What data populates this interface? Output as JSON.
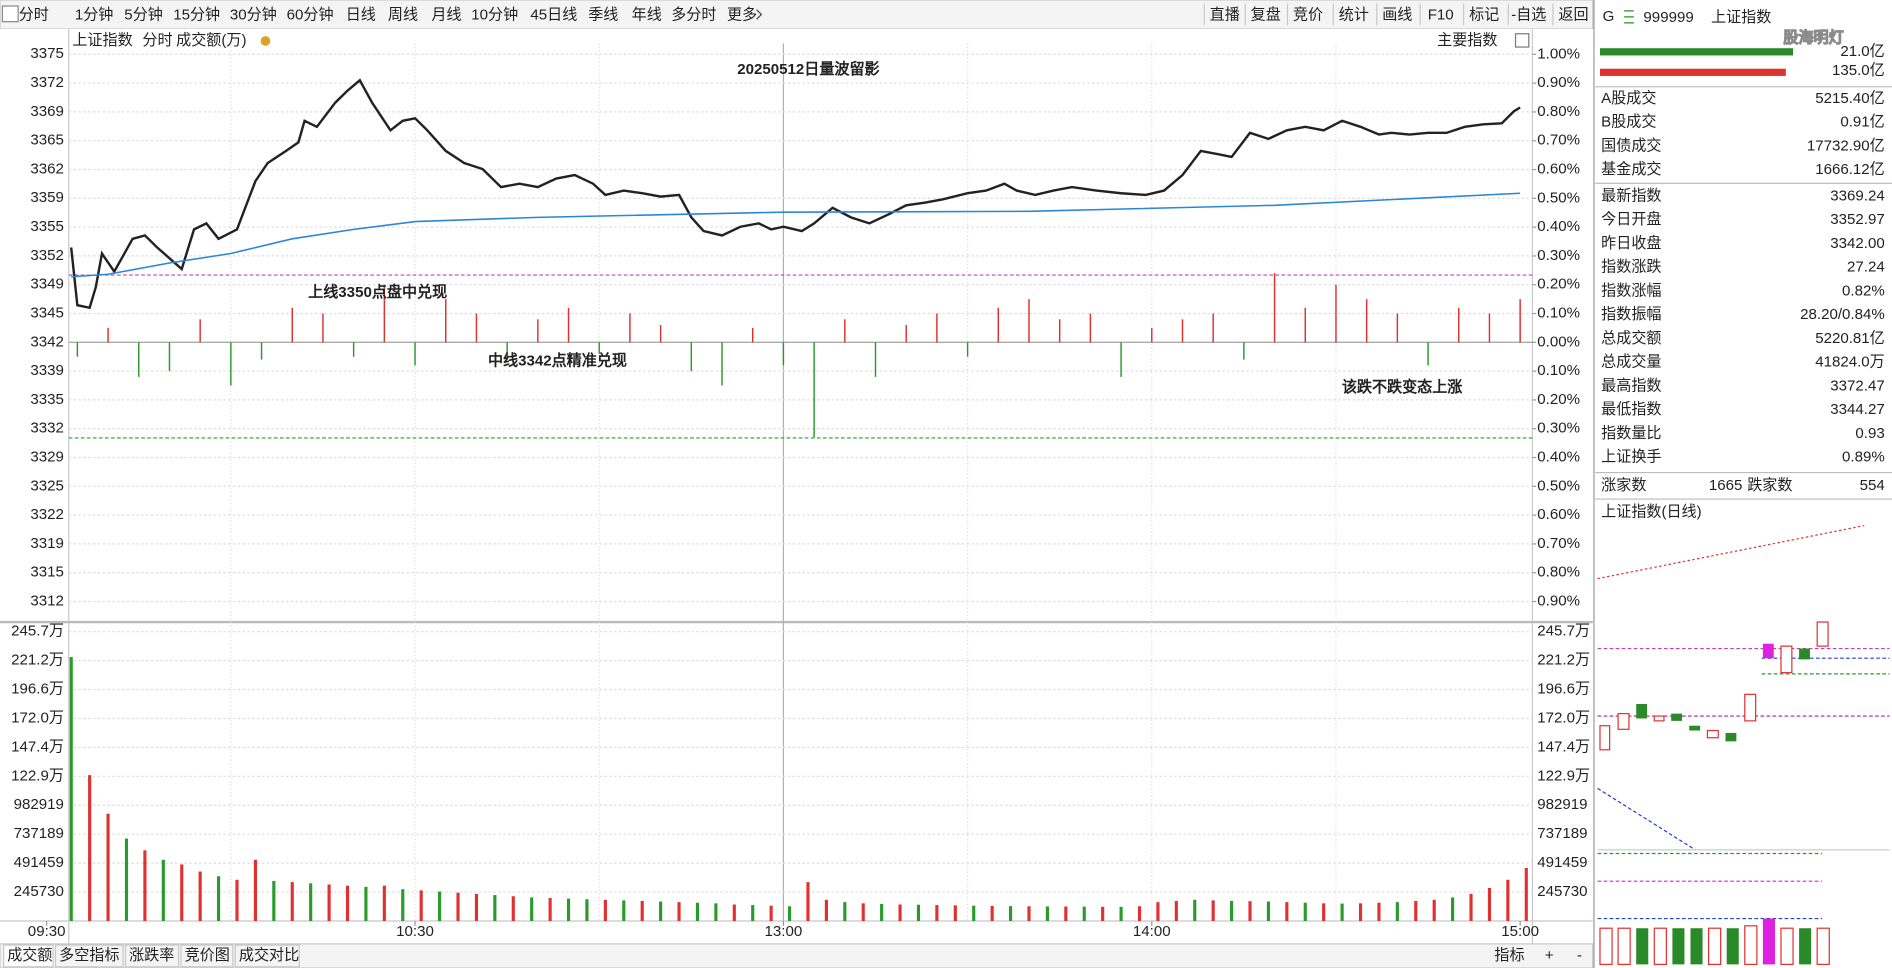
{
  "toolbar": {
    "tabs": [
      "分时",
      "1分钟",
      "5分钟",
      "15分钟",
      "30分钟",
      "60分钟",
      "日线",
      "周线",
      "月线",
      "10分钟",
      "45日线",
      "季线",
      "年线",
      "多分时",
      "更多"
    ],
    "buttons": [
      "直播",
      "复盘",
      "竞价",
      "统计",
      "画线",
      "F10",
      "标记",
      "-自选",
      "返回"
    ]
  },
  "chart_header": {
    "name": "上证指数",
    "mode": "分时",
    "volume_label": "成交额(万)",
    "index_button": "主要指数"
  },
  "quote": {
    "flag": "G",
    "code": "999999",
    "name": "上证指数",
    "watermark": "股海明灯",
    "bar_top": "21.0亿",
    "bar_bottom": "135.0亿"
  },
  "stats": [
    {
      "label": "A股成交",
      "value": "5215.40亿",
      "color": "#222222"
    },
    {
      "label": "B股成交",
      "value": "0.91亿",
      "color": "#222222"
    },
    {
      "label": "国债成交",
      "value": "17732.90亿",
      "color": "#222222"
    },
    {
      "label": "基金成交",
      "value": "1666.12亿",
      "color": "#222222"
    },
    {
      "label": "最新指数",
      "value": "3369.24",
      "color": "#e02020"
    },
    {
      "label": "今日开盘",
      "value": "3352.97",
      "color": "#e02020"
    },
    {
      "label": "昨日收盘",
      "value": "3342.00",
      "color": "#222222"
    },
    {
      "label": "指数涨跌",
      "value": "27.24",
      "color": "#e02020"
    },
    {
      "label": "指数涨幅",
      "value": "0.82%",
      "color": "#e02020"
    },
    {
      "label": "指数振幅",
      "value": "28.20/0.84%",
      "color": "#222222"
    },
    {
      "label": "总成交额",
      "value": "5220.81亿",
      "color": "#222222"
    },
    {
      "label": "总成交量",
      "value": "41824.0万",
      "color": "#222222"
    },
    {
      "label": "最高指数",
      "value": "3372.47",
      "color": "#e02020"
    },
    {
      "label": "最低指数",
      "value": "3344.27",
      "color": "#e02020"
    },
    {
      "label": "指数量比",
      "value": "0.93",
      "color": "#1a9a1a"
    },
    {
      "label": "上证换手",
      "value": "0.89%",
      "color": "#222222"
    }
  ],
  "breadth": {
    "up_label": "涨家数",
    "up": 1665,
    "down_label": "跌家数",
    "down": 554
  },
  "mini_chart_title": "上证指数(日线)",
  "bottom_tabs": [
    "成交额",
    "多空指标",
    "涨跌率",
    "竞价图",
    "成交对比"
  ],
  "bottom_right": [
    "指标",
    "+",
    "-"
  ],
  "chart_data": [
    {
      "type": "line",
      "title": "20250512日量波留影",
      "annotations": [
        "上线3350点盘中兑现",
        "中线3342点精准兑现",
        "该跌不跌变态上涨"
      ],
      "xlim": [
        3.6,
        242
      ],
      "xticks": [
        {
          "value": 0,
          "label": "09:30"
        },
        {
          "value": 60,
          "label": "10:30"
        },
        {
          "value": 120,
          "label": "13:00"
        },
        {
          "value": 180,
          "label": "14:00"
        },
        {
          "value": 240,
          "label": "15:00"
        }
      ],
      "xgrid": [
        30,
        60,
        90,
        120,
        150,
        180,
        210
      ],
      "ylim": [
        3309.68,
        3376.68
      ],
      "yticks": [
        {
          "value": 3375.42,
          "label": "3375"
        },
        {
          "value": 3372.08,
          "label": "3372"
        },
        {
          "value": 3368.73,
          "label": "3369"
        },
        {
          "value": 3365.39,
          "label": "3365"
        },
        {
          "value": 3362.05,
          "label": "3362"
        },
        {
          "value": 3358.71,
          "label": "3359"
        },
        {
          "value": 3355.37,
          "label": "3355"
        },
        {
          "value": 3352.03,
          "label": "3352"
        },
        {
          "value": 3348.68,
          "label": "3349"
        },
        {
          "value": 3345.34,
          "label": "3345"
        },
        3342,
        {
          "value": 3338.66,
          "label": "3339"
        },
        {
          "value": 3335.32,
          "label": "3335"
        },
        {
          "value": 3331.97,
          "label": "3332"
        },
        {
          "value": 3328.63,
          "label": "3329"
        },
        {
          "value": 3325.29,
          "label": "3325"
        },
        {
          "value": 3321.95,
          "label": "3322"
        },
        {
          "value": 3318.61,
          "label": "3319"
        },
        {
          "value": 3315.26,
          "label": "3315"
        },
        {
          "value": 3311.92,
          "label": "3312"
        }
      ],
      "y2lim": [
        -0.967,
        1.038
      ],
      "y2ticks": [
        {
          "value": 1.0,
          "label": "1.00%"
        },
        {
          "value": 0.9,
          "label": "0.90%"
        },
        {
          "value": 0.8,
          "label": "0.80%"
        },
        {
          "value": 0.7,
          "label": "0.70%"
        },
        {
          "value": 0.6,
          "label": "0.60%"
        },
        {
          "value": 0.5,
          "label": "0.50%"
        },
        {
          "value": 0.4,
          "label": "0.40%"
        },
        {
          "value": 0.3,
          "label": "0.30%"
        },
        {
          "value": 0.2,
          "label": "0.20%"
        },
        {
          "value": 0.1,
          "label": "0.10%"
        },
        {
          "value": 0,
          "label": "0.00%"
        },
        {
          "value": -0.1,
          "label": "0.10%"
        },
        {
          "value": -0.2,
          "label": "0.20%"
        },
        {
          "value": -0.3,
          "label": "0.30%"
        },
        {
          "value": -0.4,
          "label": "0.40%"
        },
        {
          "value": -0.5,
          "label": "0.50%"
        },
        {
          "value": -0.6,
          "label": "0.60%"
        },
        {
          "value": -0.7,
          "label": "0.70%"
        },
        {
          "value": -0.8,
          "label": "0.80%"
        },
        {
          "value": -0.9,
          "label": "0.90%"
        }
      ],
      "hlines": [
        {
          "value": 3349.8,
          "color": "#c040c0"
        },
        {
          "value": 3330.9,
          "color": "#20a020"
        }
      ],
      "series": [
        {
          "color": "#222222",
          "x": [
            4,
            5,
            7,
            8,
            9,
            11,
            14,
            16,
            18,
            22,
            24,
            26,
            28,
            31,
            34,
            36,
            39,
            41,
            42,
            44,
            47,
            49,
            51,
            53,
            56,
            58,
            60,
            62,
            65,
            68,
            71,
            74,
            77,
            80,
            83,
            86,
            89,
            91,
            94,
            97,
            100,
            103,
            105,
            107,
            110,
            113,
            116,
            118,
            120,
            123,
            125,
            128,
            131,
            134,
            137,
            140,
            143,
            146,
            150,
            153,
            156,
            158,
            161,
            164,
            167,
            171,
            175,
            179,
            182,
            185,
            188,
            191,
            193,
            196,
            199,
            202,
            205,
            208,
            211,
            214,
            217,
            219,
            222,
            225,
            228,
            231,
            234,
            237,
            239,
            240
          ],
          "values": [
            3353.0,
            3346.3,
            3346.0,
            3348.4,
            3352.3,
            3350.2,
            3354.0,
            3354.4,
            3353.0,
            3350.5,
            3355.1,
            3355.8,
            3354.0,
            3355.1,
            3360.7,
            3362.8,
            3364.2,
            3365.2,
            3367.7,
            3367.0,
            3369.8,
            3371.2,
            3372.4,
            3369.8,
            3366.6,
            3367.7,
            3368.0,
            3366.6,
            3364.2,
            3362.8,
            3362.1,
            3360.0,
            3360.4,
            3360.0,
            3361.0,
            3361.4,
            3360.4,
            3359.1,
            3359.6,
            3359.3,
            3358.9,
            3359.1,
            3356.5,
            3354.9,
            3354.4,
            3355.4,
            3355.8,
            3355.1,
            3355.4,
            3354.9,
            3355.8,
            3357.6,
            3356.5,
            3355.8,
            3356.8,
            3357.9,
            3358.2,
            3358.6,
            3359.3,
            3359.6,
            3360.4,
            3359.6,
            3359.1,
            3359.6,
            3360.0,
            3359.6,
            3359.3,
            3359.1,
            3359.6,
            3361.4,
            3364.2,
            3363.8,
            3363.5,
            3366.3,
            3365.6,
            3366.6,
            3367.0,
            3366.6,
            3367.7,
            3367.0,
            3366.1,
            3366.3,
            3366.1,
            3366.3,
            3366.3,
            3367.0,
            3367.3,
            3367.4,
            3368.8,
            3369.24
          ]
        },
        {
          "color": "#2a86d8",
          "x": [
            4,
            10,
            20,
            30,
            40,
            50,
            60,
            80,
            120,
            160,
            200,
            240
          ],
          "values": [
            3349.6,
            3349.9,
            3351.2,
            3352.3,
            3354.0,
            3355.1,
            3356.0,
            3356.5,
            3357.1,
            3357.2,
            3357.9,
            3359.3
          ]
        },
        {
          "type": "bar",
          "axis": "y2",
          "color": "#e03030",
          "down_color": "#2a9a2a",
          "x": [
            5,
            10,
            15,
            20,
            25,
            30,
            35,
            40,
            45,
            50,
            55,
            60,
            65,
            70,
            75,
            80,
            85,
            90,
            95,
            100,
            105,
            110,
            115,
            120,
            125,
            130,
            135,
            140,
            145,
            150,
            155,
            160,
            165,
            170,
            175,
            180,
            185,
            190,
            195,
            200,
            205,
            210,
            215,
            220,
            225,
            230,
            235,
            240
          ],
          "values": [
            -0.05,
            0.05,
            -0.12,
            -0.1,
            0.08,
            -0.15,
            -0.06,
            0.12,
            0.1,
            -0.05,
            0.2,
            -0.08,
            0.15,
            0.1,
            -0.06,
            0.08,
            0.12,
            -0.04,
            0.1,
            0.06,
            -0.1,
            -0.15,
            0.05,
            -0.08,
            -0.33,
            0.08,
            -0.12,
            0.06,
            0.1,
            -0.05,
            0.12,
            0.15,
            0.08,
            0.1,
            -0.12,
            0.05,
            0.08,
            0.1,
            -0.06,
            0.24,
            0.12,
            0.2,
            0.15,
            0.1,
            -0.08,
            0.12,
            0.1,
            0.15
          ]
        }
      ]
    },
    {
      "type": "bar",
      "xlim": [
        3.6,
        242
      ],
      "ylim": [
        0,
        2457297
      ],
      "yticks": [
        {
          "value": 2457297,
          "label": "245.7万"
        },
        {
          "value": 2211567,
          "label": "221.2万"
        },
        {
          "value": 1965838,
          "label": "196.6万"
        },
        {
          "value": 1720108,
          "label": "172.0万"
        },
        {
          "value": 1474378,
          "label": "147.4万"
        },
        {
          "value": 1228649,
          "label": "122.9万"
        },
        982919,
        737189,
        491459,
        245730
      ],
      "x": [
        4,
        7,
        10,
        13,
        16,
        19,
        22,
        25,
        28,
        31,
        34,
        37,
        40,
        43,
        46,
        49,
        52,
        55,
        58,
        61,
        64,
        67,
        70,
        73,
        76,
        79,
        82,
        85,
        88,
        91,
        94,
        97,
        100,
        103,
        106,
        109,
        112,
        115,
        118,
        121,
        124,
        127,
        130,
        133,
        136,
        139,
        142,
        145,
        148,
        151,
        154,
        157,
        160,
        163,
        166,
        169,
        172,
        175,
        178,
        181,
        184,
        187,
        190,
        193,
        196,
        199,
        202,
        205,
        208,
        211,
        214,
        217,
        220,
        223,
        226,
        229,
        232,
        235,
        238,
        241
      ],
      "values": [
        2242000,
        1239000,
        911000,
        700000,
        600000,
        520000,
        480000,
        420000,
        380000,
        350000,
        520000,
        340000,
        330000,
        320000,
        310000,
        300000,
        290000,
        300000,
        270000,
        260000,
        250000,
        240000,
        230000,
        220000,
        210000,
        200000,
        195000,
        190000,
        185000,
        180000,
        175000,
        170000,
        165000,
        160000,
        155000,
        150000,
        140000,
        135000,
        130000,
        125000,
        330000,
        180000,
        160000,
        150000,
        145000,
        140000,
        138000,
        135000,
        133000,
        130000,
        128000,
        126000,
        125000,
        124000,
        123000,
        122000,
        121000,
        120000,
        125000,
        160000,
        170000,
        180000,
        175000,
        170000,
        168000,
        165000,
        160000,
        155000,
        150000,
        148000,
        150000,
        155000,
        160000,
        170000,
        180000,
        200000,
        230000,
        280000,
        350000,
        450000
      ],
      "colors": [
        "#2a9a2a",
        "#e03030",
        "#e03030",
        "#2a9a2a",
        "#e03030",
        "#2a9a2a",
        "#e03030",
        "#e03030",
        "#2a9a2a",
        "#e03030",
        "#e03030",
        "#2a9a2a",
        "#e03030",
        "#2a9a2a",
        "#e03030",
        "#e03030",
        "#2a9a2a",
        "#e03030",
        "#2a9a2a",
        "#e03030",
        "#2a9a2a",
        "#e03030",
        "#e03030",
        "#2a9a2a",
        "#e03030",
        "#2a9a2a",
        "#e03030",
        "#2a9a2a",
        "#2a9a2a",
        "#e03030",
        "#2a9a2a",
        "#e03030",
        "#2a9a2a",
        "#e03030",
        "#2a9a2a",
        "#2a9a2a",
        "#e03030",
        "#2a9a2a",
        "#e03030",
        "#2a9a2a",
        "#e03030",
        "#e03030",
        "#2a9a2a",
        "#e03030",
        "#2a9a2a",
        "#e03030",
        "#2a9a2a",
        "#e03030",
        "#e03030",
        "#2a9a2a",
        "#e03030",
        "#2a9a2a",
        "#e03030",
        "#2a9a2a",
        "#e03030",
        "#2a9a2a",
        "#e03030",
        "#2a9a2a",
        "#e03030",
        "#e03030",
        "#e03030",
        "#2a9a2a",
        "#e03030",
        "#2a9a2a",
        "#e03030",
        "#2a9a2a",
        "#e03030",
        "#2a9a2a",
        "#e03030",
        "#2a9a2a",
        "#e03030",
        "#e03030",
        "#2a9a2a",
        "#e03030",
        "#e03030",
        "#2a9a2a",
        "#e03030",
        "#e03030",
        "#e03030",
        "#e03030"
      ]
    }
  ]
}
